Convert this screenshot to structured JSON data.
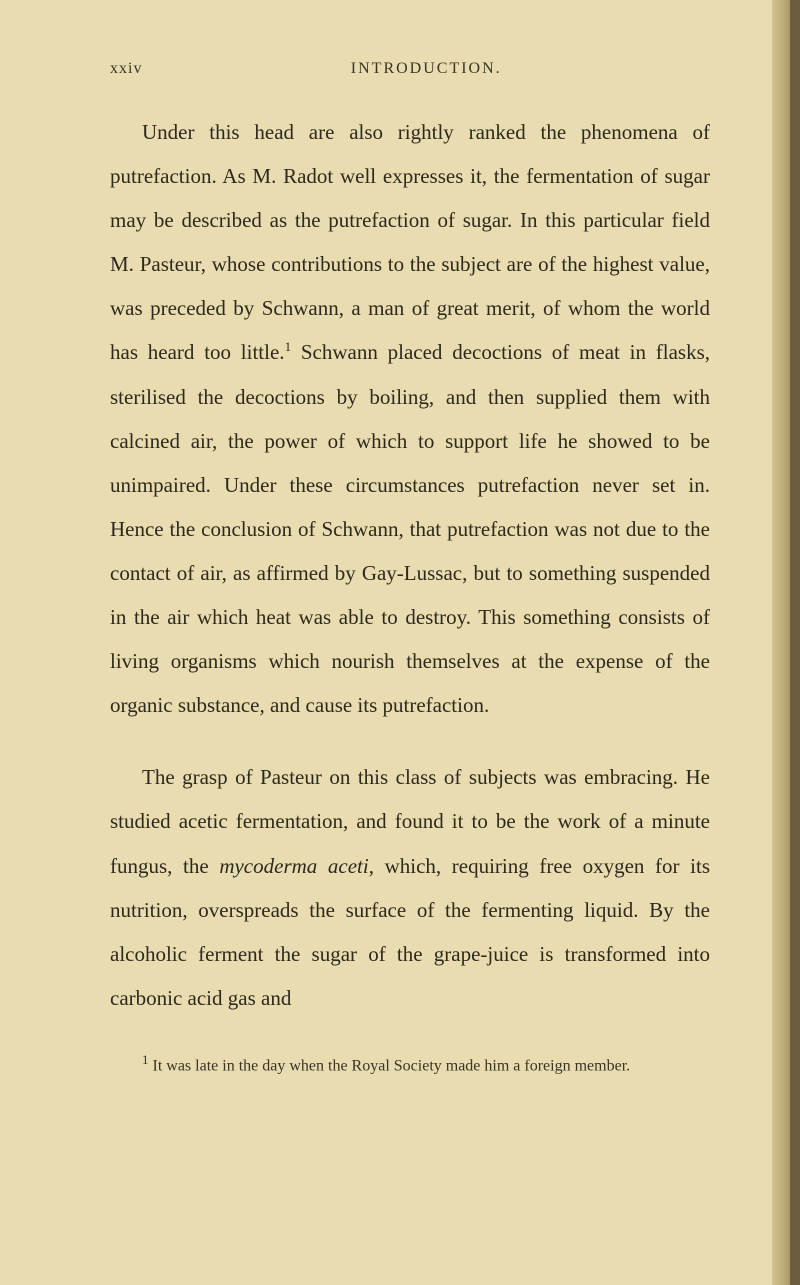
{
  "page": {
    "number": "xxiv",
    "runningHead": "INTRODUCTION."
  },
  "paragraphs": {
    "p1_part1": "Under this head are also rightly ranked the phenomena of putrefaction. As M. Radot well expresses it, the fermentation of sugar may be described as the putrefaction of sugar. In this particular field M. Pasteur, whose contributions to the subject are of the highest value, was preceded by Schwann, a man of great merit, of whom the world has heard too little.",
    "p1_sup": "1",
    "p1_part2": " Schwann placed decoctions of meat in flasks, sterilised the decoctions by boiling, and then supplied them with calcined air, the power of which to support life he showed to be unimpaired. Under these circumstances putrefaction never set in. Hence the conclusion of Schwann, that putrefaction was not due to the contact of air, as affirmed by Gay-Lussac, but to something suspended in the air which heat was able to destroy. This something consists of living organisms which nourish themselves at the expense of the organic substance, and cause its putrefaction.",
    "p2_part1": "The grasp of Pasteur on this class of subjects was embracing. He studied acetic fermentation, and found it to be the work of a minute fungus, the ",
    "p2_italic": "mycoderma aceti",
    "p2_part2": ", which, requiring free oxygen for its nutrition, overspreads the surface of the fermenting liquid. By the alcoholic ferment the sugar of the grape-juice is transformed into carbonic acid gas and"
  },
  "footnote": {
    "marker": "1",
    "text": " It was late in the day when the Royal Society made him a foreign member."
  },
  "styling": {
    "backgroundColor": "#e8dcb0",
    "textColor": "#2e291d",
    "headerColor": "#3a3426",
    "bodyFontSize": 21,
    "footnoteFontSize": 16,
    "lineHeight": 2.1,
    "pageWidth": 800,
    "pageHeight": 1285
  }
}
